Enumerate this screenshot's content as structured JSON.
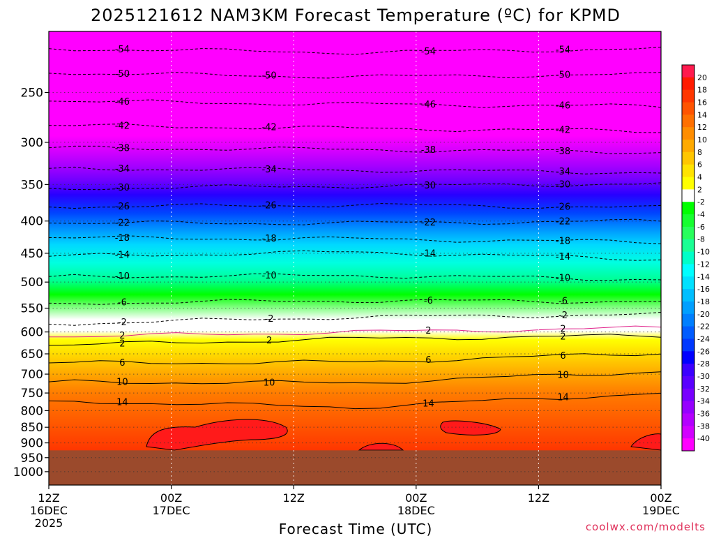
{
  "chart_data": {
    "type": "heatmap",
    "title": "2025121612 NAM3KM Forecast Temperature (ºC) for KPMD",
    "xlabel": "Forecast Time (UTC)",
    "ylabel": "",
    "credit": "coolwx.com/modelts",
    "y_axis": {
      "scale": "log",
      "unit": "hPa",
      "range": [
        1050,
        200
      ],
      "ticks": [
        250,
        300,
        350,
        400,
        450,
        500,
        550,
        600,
        650,
        700,
        750,
        800,
        850,
        900,
        950,
        1000
      ]
    },
    "x_axis": {
      "range": [
        "2025-12-16T12:00Z",
        "2025-12-19T00:00Z"
      ],
      "tick_times": [
        "2025-12-16T12:00Z",
        "2025-12-17T00:00Z",
        "2025-12-17T12:00Z",
        "2025-12-18T00:00Z",
        "2025-12-18T12:00Z",
        "2025-12-19T00:00Z"
      ],
      "ticks": [
        {
          "hour": "12Z",
          "date": "16DEC",
          "year": "2025"
        },
        {
          "hour": "00Z",
          "date": "17DEC",
          "year": ""
        },
        {
          "hour": "12Z",
          "date": "",
          "year": ""
        },
        {
          "hour": "00Z",
          "date": "18DEC",
          "year": ""
        },
        {
          "hour": "12Z",
          "date": "",
          "year": ""
        },
        {
          "hour": "00Z",
          "date": "19DEC",
          "year": ""
        }
      ],
      "grid": true
    },
    "surface_pressure_hPa": 925,
    "underground_color": "#9b4a2c",
    "colorbar": {
      "orientation": "vertical",
      "placement": "right",
      "labels": [
        20,
        18,
        16,
        14,
        12,
        10,
        8,
        6,
        4,
        2,
        -2,
        -4,
        -6,
        -8,
        -10,
        -12,
        -14,
        -16,
        -18,
        -20,
        -22,
        -24,
        -26,
        -28,
        -30,
        -32,
        -34,
        -36,
        -38,
        -40
      ],
      "colors": [
        "#ff1a4e",
        "#ff1a00",
        "#ff3700",
        "#ff5400",
        "#ff7000",
        "#ff8d00",
        "#ffaa00",
        "#ffc600",
        "#ffe300",
        "#ffff00",
        "#ffffff",
        "#00ff00",
        "#16ff30",
        "#28ff5c",
        "#1aff94",
        "#00ffc8",
        "#00ffff",
        "#00e1ff",
        "#00bfff",
        "#009fff",
        "#007fff",
        "#005cff",
        "#0038ff",
        "#0000ff",
        "#3c00ff",
        "#5a00ff",
        "#7800ff",
        "#9600ff",
        "#b400ff",
        "#d200ff",
        "#ff00ff"
      ]
    },
    "isotherms": [
      {
        "temp": -54,
        "p_start": 213,
        "p_mid": 216,
        "p_end": 213
      },
      {
        "temp": -50,
        "p_start": 233,
        "p_mid": 236,
        "p_end": 234
      },
      {
        "temp": -46,
        "p_start": 258,
        "p_mid": 261,
        "p_end": 263
      },
      {
        "temp": -42,
        "p_start": 282,
        "p_mid": 285,
        "p_end": 288
      },
      {
        "temp": -38,
        "p_start": 306,
        "p_mid": 308,
        "p_end": 311
      },
      {
        "temp": -34,
        "p_start": 330,
        "p_mid": 332,
        "p_end": 335
      },
      {
        "temp": -30,
        "p_start": 355,
        "p_mid": 352,
        "p_end": 349
      },
      {
        "temp": -26,
        "p_start": 380,
        "p_mid": 377,
        "p_end": 381
      },
      {
        "temp": -22,
        "p_start": 403,
        "p_mid": 403,
        "p_end": 400
      },
      {
        "temp": -18,
        "p_start": 425,
        "p_mid": 427,
        "p_end": 432
      },
      {
        "temp": -14,
        "p_start": 455,
        "p_mid": 448,
        "p_end": 460
      },
      {
        "temp": -10,
        "p_start": 490,
        "p_mid": 488,
        "p_end": 495
      },
      {
        "temp": -6,
        "p_start": 540,
        "p_mid": 535,
        "p_end": 537
      },
      {
        "temp": -2,
        "p_start": 583,
        "p_mid": 568,
        "p_end": 563
      },
      {
        "temp": 2,
        "p_start": 611,
        "p_mid": 600,
        "p_end": 591
      },
      {
        "temp": 2,
        "p_start": 630,
        "p_mid": 615,
        "p_end": 608
      },
      {
        "temp": 6,
        "p_start": 672,
        "p_mid": 670,
        "p_end": 648
      },
      {
        "temp": 10,
        "p_start": 720,
        "p_mid": 723,
        "p_end": 693
      },
      {
        "temp": 14,
        "p_start": 772,
        "p_mid": 790,
        "p_end": 750
      }
    ]
  }
}
